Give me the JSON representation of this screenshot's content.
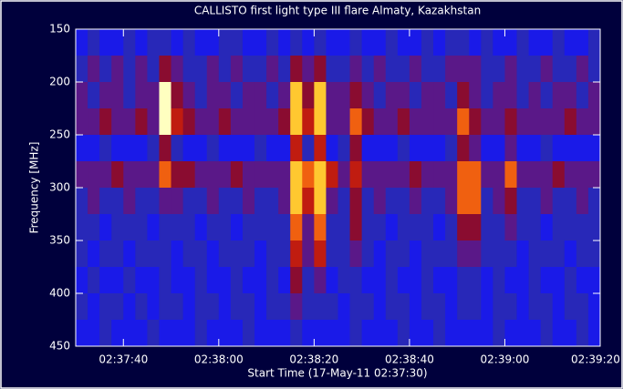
{
  "chart_data": {
    "type": "heatmap",
    "title": "CALLISTO first light type III flare Almaty, Kazakhstan",
    "x_label": "Start Time (17-May-11 02:37:30)",
    "y_label": "Frequency [MHz]",
    "xlim": [
      0,
      110
    ],
    "xticks": [
      {
        "value": 10,
        "label": "02:37:40"
      },
      {
        "value": 30,
        "label": "02:38:00"
      },
      {
        "value": 50,
        "label": "02:38:20"
      },
      {
        "value": 70,
        "label": "02:38:40"
      },
      {
        "value": 90,
        "label": "02:39:00"
      },
      {
        "value": 110,
        "label": "02:39:20"
      }
    ],
    "ylim": [
      450,
      150
    ],
    "yticks": [
      150,
      200,
      250,
      300,
      350,
      400,
      450
    ],
    "x": [
      0,
      2.5,
      5,
      7.5,
      10,
      12.5,
      15,
      17.5,
      20,
      22.5,
      25,
      27.5,
      30,
      32.5,
      35,
      37.5,
      40,
      42.5,
      45,
      47.5,
      50,
      52.5,
      55,
      57.5,
      60,
      62.5,
      65,
      67.5,
      70,
      72.5,
      75,
      77.5,
      80,
      82.5,
      85,
      87.5,
      90,
      92.5,
      95,
      97.5,
      100,
      102.5,
      105,
      107.5
    ],
    "y": [
      150,
      175,
      200,
      225,
      250,
      275,
      300,
      325,
      350,
      375,
      400,
      425
    ],
    "colorscale": [
      "#000060",
      "#0a0aa0",
      "#1a1ae8",
      "#2828b8",
      "#5a1888",
      "#8a0c30",
      "#c01c10",
      "#f06010",
      "#ffc830",
      "#ffffc0"
    ],
    "z": [
      [
        2,
        3,
        2,
        2,
        3,
        2,
        3,
        3,
        2,
        3,
        2,
        2,
        3,
        3,
        2,
        2,
        3,
        2,
        3,
        2,
        3,
        2,
        2,
        3,
        2,
        2,
        3,
        2,
        2,
        3,
        2,
        3,
        3,
        2,
        3,
        2,
        2,
        3,
        2,
        2,
        3,
        2,
        2,
        3
      ],
      [
        3,
        4,
        3,
        4,
        3,
        4,
        3,
        5,
        4,
        3,
        3,
        4,
        3,
        4,
        3,
        3,
        4,
        3,
        5,
        4,
        5,
        3,
        3,
        4,
        3,
        4,
        3,
        3,
        4,
        3,
        3,
        4,
        4,
        4,
        3,
        3,
        4,
        3,
        3,
        4,
        3,
        3,
        4,
        3
      ],
      [
        4,
        3,
        4,
        4,
        3,
        4,
        4,
        9,
        5,
        4,
        3,
        4,
        4,
        3,
        4,
        4,
        3,
        4,
        8,
        5,
        8,
        4,
        4,
        5,
        4,
        3,
        4,
        4,
        3,
        4,
        4,
        3,
        5,
        4,
        3,
        4,
        4,
        3,
        4,
        3,
        4,
        4,
        3,
        4
      ],
      [
        4,
        4,
        5,
        4,
        4,
        5,
        4,
        9,
        6,
        5,
        4,
        4,
        5,
        4,
        4,
        4,
        4,
        5,
        8,
        6,
        8,
        4,
        4,
        7,
        5,
        4,
        4,
        5,
        4,
        4,
        4,
        4,
        7,
        5,
        4,
        4,
        5,
        4,
        4,
        4,
        4,
        5,
        4,
        4
      ],
      [
        2,
        2,
        3,
        2,
        2,
        2,
        3,
        5,
        3,
        2,
        2,
        3,
        2,
        2,
        2,
        3,
        2,
        2,
        6,
        3,
        6,
        2,
        3,
        5,
        2,
        2,
        2,
        3,
        2,
        2,
        2,
        3,
        5,
        4,
        2,
        2,
        4,
        2,
        2,
        3,
        2,
        2,
        2,
        2
      ],
      [
        4,
        4,
        4,
        5,
        4,
        4,
        4,
        7,
        5,
        5,
        4,
        4,
        4,
        5,
        4,
        4,
        4,
        4,
        8,
        7,
        8,
        6,
        4,
        6,
        4,
        4,
        4,
        4,
        5,
        4,
        4,
        4,
        7,
        7,
        4,
        4,
        7,
        4,
        4,
        4,
        5,
        4,
        4,
        4
      ],
      [
        3,
        4,
        3,
        3,
        4,
        3,
        3,
        4,
        4,
        3,
        3,
        4,
        3,
        3,
        4,
        3,
        3,
        4,
        8,
        6,
        8,
        4,
        3,
        5,
        3,
        4,
        3,
        3,
        4,
        3,
        3,
        4,
        7,
        7,
        3,
        4,
        5,
        3,
        3,
        4,
        3,
        3,
        4,
        3
      ],
      [
        3,
        3,
        2,
        3,
        3,
        3,
        2,
        3,
        3,
        3,
        2,
        3,
        3,
        2,
        3,
        3,
        3,
        3,
        7,
        4,
        7,
        3,
        3,
        5,
        3,
        3,
        2,
        3,
        3,
        3,
        2,
        3,
        5,
        5,
        3,
        3,
        4,
        3,
        3,
        2,
        3,
        3,
        3,
        3
      ],
      [
        3,
        2,
        3,
        3,
        2,
        3,
        3,
        3,
        2,
        3,
        3,
        2,
        3,
        3,
        3,
        2,
        3,
        3,
        6,
        4,
        6,
        3,
        3,
        4,
        3,
        2,
        3,
        3,
        2,
        3,
        3,
        3,
        4,
        4,
        3,
        3,
        3,
        2,
        3,
        3,
        3,
        2,
        3,
        3
      ],
      [
        2,
        3,
        2,
        2,
        3,
        2,
        2,
        3,
        2,
        2,
        3,
        2,
        2,
        3,
        2,
        2,
        3,
        2,
        5,
        3,
        4,
        2,
        3,
        3,
        2,
        2,
        3,
        2,
        2,
        3,
        2,
        2,
        3,
        3,
        2,
        3,
        2,
        2,
        3,
        2,
        2,
        3,
        2,
        2
      ],
      [
        3,
        2,
        3,
        3,
        2,
        3,
        2,
        3,
        3,
        2,
        3,
        3,
        2,
        3,
        3,
        2,
        3,
        3,
        4,
        3,
        3,
        3,
        2,
        3,
        3,
        2,
        3,
        3,
        2,
        3,
        3,
        2,
        3,
        3,
        2,
        3,
        3,
        2,
        3,
        3,
        2,
        3,
        3,
        2
      ],
      [
        2,
        2,
        3,
        2,
        2,
        2,
        3,
        2,
        2,
        2,
        3,
        2,
        2,
        2,
        3,
        2,
        2,
        2,
        3,
        2,
        2,
        2,
        2,
        3,
        2,
        2,
        2,
        3,
        2,
        2,
        3,
        2,
        2,
        2,
        2,
        3,
        2,
        2,
        2,
        3,
        2,
        2,
        3,
        2
      ]
    ]
  }
}
